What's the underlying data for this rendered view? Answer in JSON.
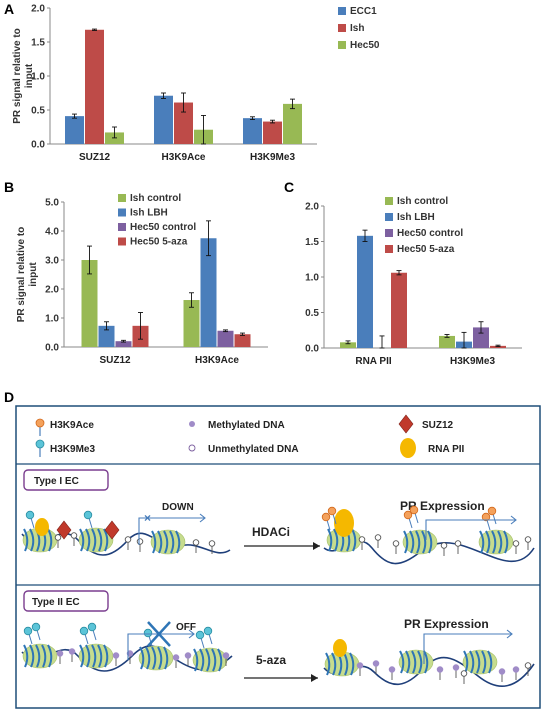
{
  "chart_data": [
    {
      "panel": "A",
      "type": "bar",
      "ylabel": "PR signal relative to input",
      "ylim": [
        0,
        2.0
      ],
      "yticks": [
        "0.0",
        "0.5",
        "1.0",
        "1.5",
        "2.0"
      ],
      "categories": [
        "SUZ12",
        "H3K9Ace",
        "H3K9Me3"
      ],
      "legend": "top-right",
      "series": [
        {
          "name": "ECC1",
          "color": "#4a7ebb",
          "values": [
            0.41,
            0.71,
            0.38
          ],
          "errors": [
            0.03,
            0.04,
            0.02
          ]
        },
        {
          "name": "Ish",
          "color": "#be4b48",
          "values": [
            1.68,
            0.61,
            0.33
          ],
          "errors": [
            0.01,
            0.14,
            0.02
          ]
        },
        {
          "name": "Hec50",
          "color": "#98b954",
          "values": [
            0.17,
            0.21,
            0.59
          ],
          "errors": [
            0.08,
            0.21,
            0.07
          ]
        }
      ]
    },
    {
      "panel": "B",
      "type": "bar",
      "ylabel": "PR signal relative to input",
      "ylim": [
        0,
        5.0
      ],
      "yticks": [
        "0.0",
        "1.0",
        "2.0",
        "3.0",
        "4.0",
        "5.0"
      ],
      "categories": [
        "SUZ12",
        "H3K9Ace"
      ],
      "legend": "top-left",
      "series": [
        {
          "name": "Ish control",
          "color": "#98b954",
          "values": [
            3.0,
            1.62
          ],
          "errors": [
            0.48,
            0.25
          ]
        },
        {
          "name": "Ish LBH",
          "color": "#4a7ebb",
          "values": [
            0.73,
            3.75
          ],
          "errors": [
            0.14,
            0.6
          ]
        },
        {
          "name": "Hec50 control",
          "color": "#7d60a0",
          "values": [
            0.2,
            0.56
          ],
          "errors": [
            0.03,
            0.03
          ]
        },
        {
          "name": "Hec50 5-aza",
          "color": "#be4b48",
          "values": [
            0.73,
            0.44
          ],
          "errors": [
            0.46,
            0.04
          ]
        }
      ]
    },
    {
      "panel": "C",
      "type": "bar",
      "ylabel": "",
      "ylim": [
        0,
        2.0
      ],
      "yticks": [
        "0.0",
        "0.5",
        "1.0",
        "1.5",
        "2.0"
      ],
      "categories": [
        "RNA PII",
        "H3K9Me3"
      ],
      "legend": "top-right",
      "series": [
        {
          "name": "Ish control",
          "color": "#98b954",
          "values": [
            0.08,
            0.17
          ],
          "errors": [
            0.02,
            0.02
          ]
        },
        {
          "name": "Ish LBH",
          "color": "#4a7ebb",
          "values": [
            1.58,
            0.09
          ],
          "errors": [
            0.08,
            0.13
          ]
        },
        {
          "name": "Hec50 control",
          "color": "#7d60a0",
          "values": [
            0.0,
            0.29
          ],
          "errors": [
            0.17,
            0.08
          ]
        },
        {
          "name": "Hec50 5-aza",
          "color": "#be4b48",
          "values": [
            1.06,
            0.03
          ],
          "errors": [
            0.03,
            0.01
          ]
        }
      ]
    }
  ],
  "diagram": {
    "panel": "D",
    "legend": {
      "h3k9ace": "H3K9Ace",
      "h3k9me3": "H3K9Me3",
      "methylated": "Methylated DNA",
      "unmethylated": "Unmethylated DNA",
      "suz12": "SUZ12",
      "rnapii": "RNA PII"
    },
    "type1": {
      "label": "Type I EC",
      "down": "DOWN",
      "treatment": "HDACi",
      "expression": "PR Expression"
    },
    "type2": {
      "label": "Type II EC",
      "off": "OFF",
      "treatment": "5-aza",
      "expression": "PR Expression"
    },
    "colors": {
      "frame": "#1f4e79",
      "nucleosome": "#c6dc8e",
      "stripe": "#2e75b6",
      "dna": "#1f3f7a",
      "methyl": "#a08cc8",
      "ace": "#f4a15b",
      "me3": "#5bc4d8",
      "suz12": "#c0392b",
      "pol": "#f5b800",
      "box": "#7a3d8f"
    }
  }
}
